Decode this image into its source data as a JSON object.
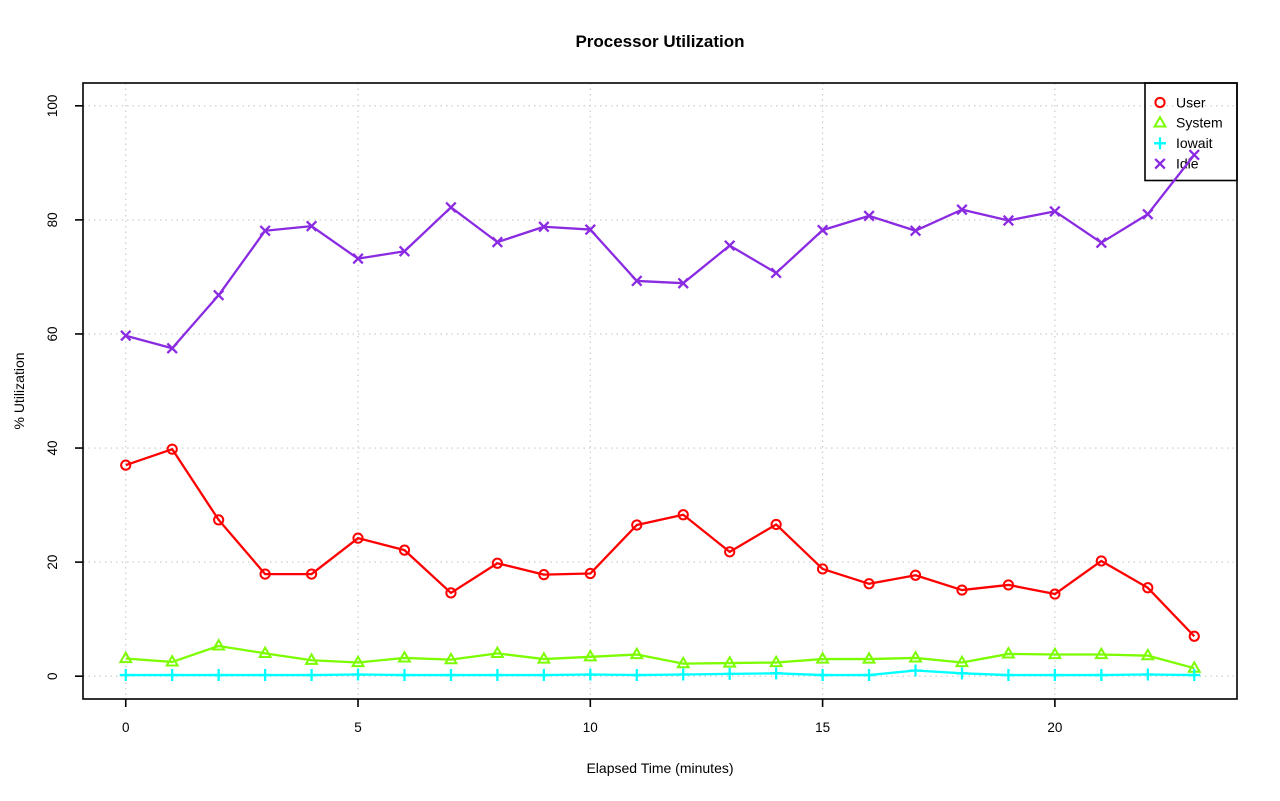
{
  "chart_data": {
    "type": "line",
    "title": "Processor Utilization",
    "xlabel": "Elapsed Time (minutes)",
    "ylabel": "% Utilization",
    "x": [
      0,
      1,
      2,
      3,
      4,
      5,
      6,
      7,
      8,
      9,
      10,
      11,
      12,
      13,
      14,
      15,
      16,
      17,
      18,
      19,
      20,
      21,
      22,
      23
    ],
    "x_ticks": [
      0,
      5,
      10,
      15,
      20
    ],
    "y_ticks": [
      0,
      20,
      40,
      60,
      80,
      100
    ],
    "xlim": [
      -0.92,
      23.92
    ],
    "ylim": [
      -4,
      104
    ],
    "grid": true,
    "grid_style": "dotted",
    "legend_position": "top-right",
    "background_color": "#ffffff",
    "grid_color": "#c8c8c8",
    "series": [
      {
        "name": "User",
        "color": "#ff0000",
        "marker": "circle",
        "values": [
          37.0,
          39.8,
          27.4,
          17.9,
          17.9,
          24.2,
          22.1,
          14.6,
          19.8,
          17.8,
          18.0,
          26.5,
          28.3,
          21.8,
          26.6,
          18.8,
          16.2,
          17.7,
          15.1,
          16.0,
          14.4,
          20.2,
          15.5,
          7.0
        ]
      },
      {
        "name": "System",
        "color": "#7cfc00",
        "marker": "triangle",
        "values": [
          3.1,
          2.5,
          5.3,
          4.0,
          2.8,
          2.4,
          3.2,
          2.9,
          4.0,
          3.0,
          3.4,
          3.8,
          2.2,
          2.3,
          2.4,
          3.0,
          3.0,
          3.2,
          2.4,
          3.9,
          3.8,
          3.8,
          3.6,
          1.4
        ]
      },
      {
        "name": "Iowait",
        "color": "#00ffff",
        "marker": "plus",
        "values": [
          0.2,
          0.2,
          0.2,
          0.2,
          0.2,
          0.3,
          0.2,
          0.2,
          0.2,
          0.2,
          0.3,
          0.2,
          0.3,
          0.4,
          0.5,
          0.2,
          0.2,
          1.0,
          0.5,
          0.2,
          0.2,
          0.2,
          0.3,
          0.2
        ]
      },
      {
        "name": "Idle",
        "color": "#8a2be2",
        "marker": "x",
        "values": [
          59.7,
          57.5,
          66.8,
          78.1,
          78.9,
          73.2,
          74.5,
          82.2,
          76.1,
          78.8,
          78.3,
          69.3,
          68.9,
          75.5,
          70.7,
          78.2,
          80.7,
          78.1,
          81.8,
          79.9,
          81.5,
          76.0,
          81.0,
          91.4
        ]
      }
    ]
  }
}
